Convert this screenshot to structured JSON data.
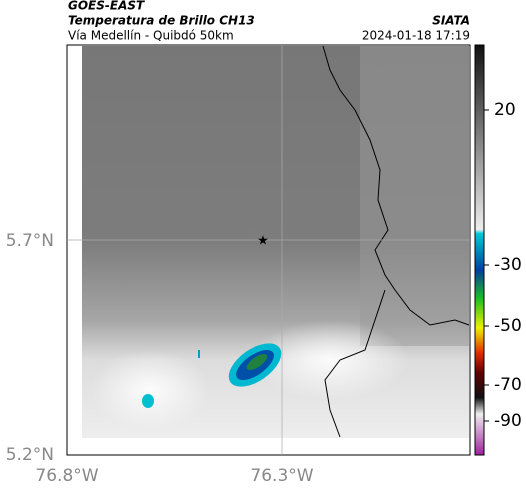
{
  "header": {
    "product": "GOES-EAST",
    "title": "Temperatura de Brillo CH13",
    "source": "SIATA",
    "subtitle": "Vía Medellín - Quibdó 50km",
    "timestamp": "2024-01-18 17:19"
  },
  "map": {
    "lat_labels": [
      "5.7°N",
      "5.2°N"
    ],
    "lon_labels": [
      "76.8°W",
      "76.3°W"
    ]
  },
  "colorbar": {
    "ticks": [
      20,
      -30,
      -50,
      -70,
      -90
    ]
  }
}
